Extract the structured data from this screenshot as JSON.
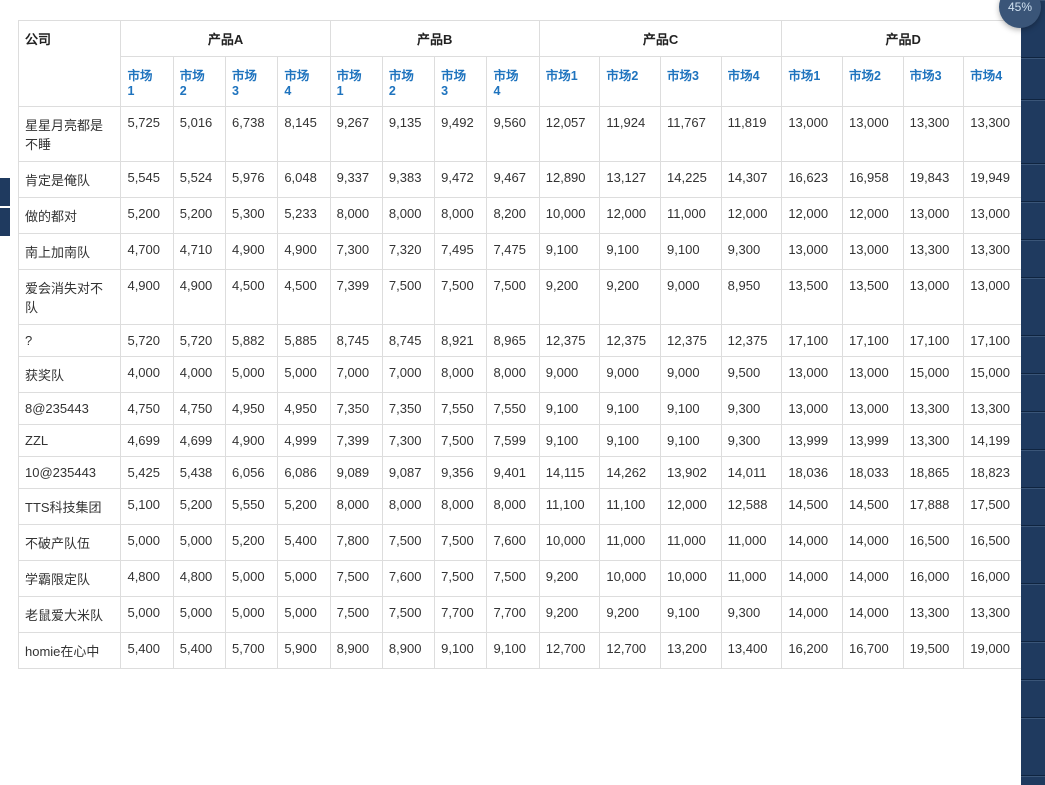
{
  "badge_text": "45%",
  "left_tabs_top": [
    178,
    208
  ],
  "table": {
    "company_header": "公司",
    "products": [
      "产品A",
      "产品B",
      "产品C",
      "产品D"
    ],
    "sub_markets_compact": [
      "市场1",
      "市场2",
      "市场3",
      "市场4"
    ],
    "sub_markets_wide": [
      "市场1",
      "市场2",
      "市场3",
      "市场4"
    ],
    "rows": [
      {
        "company": "星星月亮都是不睡",
        "vals": [
          "5,725",
          "5,016",
          "6,738",
          "8,145",
          "9,267",
          "9,135",
          "9,492",
          "9,560",
          "12,057",
          "11,924",
          "11,767",
          "11,819",
          "13,000",
          "13,000",
          "13,300",
          "13,300"
        ]
      },
      {
        "company": "肯定是俺队",
        "vals": [
          "5,545",
          "5,524",
          "5,976",
          "6,048",
          "9,337",
          "9,383",
          "9,472",
          "9,467",
          "12,890",
          "13,127",
          "14,225",
          "14,307",
          "16,623",
          "16,958",
          "19,843",
          "19,949"
        ]
      },
      {
        "company": "做的都对",
        "vals": [
          "5,200",
          "5,200",
          "5,300",
          "5,233",
          "8,000",
          "8,000",
          "8,000",
          "8,200",
          "10,000",
          "12,000",
          "11,000",
          "12,000",
          "12,000",
          "12,000",
          "13,000",
          "13,000"
        ]
      },
      {
        "company": "南上加南队",
        "vals": [
          "4,700",
          "4,710",
          "4,900",
          "4,900",
          "7,300",
          "7,320",
          "7,495",
          "7,475",
          "9,100",
          "9,100",
          "9,100",
          "9,300",
          "13,000",
          "13,000",
          "13,300",
          "13,300"
        ]
      },
      {
        "company": "爱会消失对不队",
        "vals": [
          "4,900",
          "4,900",
          "4,500",
          "4,500",
          "7,399",
          "7,500",
          "7,500",
          "7,500",
          "9,200",
          "9,200",
          "9,000",
          "8,950",
          "13,500",
          "13,500",
          "13,000",
          "13,000"
        ]
      },
      {
        "company": "?",
        "vals": [
          "5,720",
          "5,720",
          "5,882",
          "5,885",
          "8,745",
          "8,745",
          "8,921",
          "8,965",
          "12,375",
          "12,375",
          "12,375",
          "12,375",
          "17,100",
          "17,100",
          "17,100",
          "17,100"
        ]
      },
      {
        "company": "获奖队",
        "vals": [
          "4,000",
          "4,000",
          "5,000",
          "5,000",
          "7,000",
          "7,000",
          "8,000",
          "8,000",
          "9,000",
          "9,000",
          "9,000",
          "9,500",
          "13,000",
          "13,000",
          "15,000",
          "15,000"
        ]
      },
      {
        "company": "8@235443",
        "vals": [
          "4,750",
          "4,750",
          "4,950",
          "4,950",
          "7,350",
          "7,350",
          "7,550",
          "7,550",
          "9,100",
          "9,100",
          "9,100",
          "9,300",
          "13,000",
          "13,000",
          "13,300",
          "13,300"
        ]
      },
      {
        "company": "ZZL",
        "vals": [
          "4,699",
          "4,699",
          "4,900",
          "4,999",
          "7,399",
          "7,300",
          "7,500",
          "7,599",
          "9,100",
          "9,100",
          "9,100",
          "9,300",
          "13,999",
          "13,999",
          "13,300",
          "14,199"
        ]
      },
      {
        "company": "10@235443",
        "vals": [
          "5,425",
          "5,438",
          "6,056",
          "6,086",
          "9,089",
          "9,087",
          "9,356",
          "9,401",
          "14,115",
          "14,262",
          "13,902",
          "14,011",
          "18,036",
          "18,033",
          "18,865",
          "18,823"
        ]
      },
      {
        "company": "TTS科技集团",
        "vals": [
          "5,100",
          "5,200",
          "5,550",
          "5,200",
          "8,000",
          "8,000",
          "8,000",
          "8,000",
          "11,100",
          "11,100",
          "12,000",
          "12,588",
          "14,500",
          "14,500",
          "17,888",
          "17,500"
        ]
      },
      {
        "company": "不破产队伍",
        "vals": [
          "5,000",
          "5,000",
          "5,200",
          "5,400",
          "7,800",
          "7,500",
          "7,500",
          "7,600",
          "10,000",
          "11,000",
          "11,000",
          "11,000",
          "14,000",
          "14,000",
          "16,500",
          "16,500"
        ]
      },
      {
        "company": "学霸限定队",
        "vals": [
          "4,800",
          "4,800",
          "5,000",
          "5,000",
          "7,500",
          "7,600",
          "7,500",
          "7,500",
          "9,200",
          "10,000",
          "10,000",
          "11,000",
          "14,000",
          "14,000",
          "16,000",
          "16,000"
        ]
      },
      {
        "company": "老鼠爱大米队",
        "vals": [
          "5,000",
          "5,000",
          "5,000",
          "5,000",
          "7,500",
          "7,500",
          "7,700",
          "7,700",
          "9,200",
          "9,200",
          "9,100",
          "9,300",
          "14,000",
          "14,000",
          "13,300",
          "13,300"
        ]
      },
      {
        "company": "homie在心中",
        "vals": [
          "5,400",
          "5,400",
          "5,700",
          "5,900",
          "8,900",
          "8,900",
          "9,100",
          "9,100",
          "12,700",
          "12,700",
          "13,200",
          "13,400",
          "16,200",
          "16,700",
          "19,500",
          "19,000"
        ]
      }
    ]
  },
  "colors": {
    "border": "#dddddd",
    "link": "#1e73be",
    "sidebar": "#1f3a5f",
    "badge_bg": "#3a5578",
    "badge_text": "#cfe0f0"
  },
  "sidebar_segments": [
    58,
    42,
    64,
    38,
    38,
    38,
    58,
    38,
    38,
    38,
    38,
    38,
    58,
    58,
    38,
    38,
    58,
    58
  ]
}
